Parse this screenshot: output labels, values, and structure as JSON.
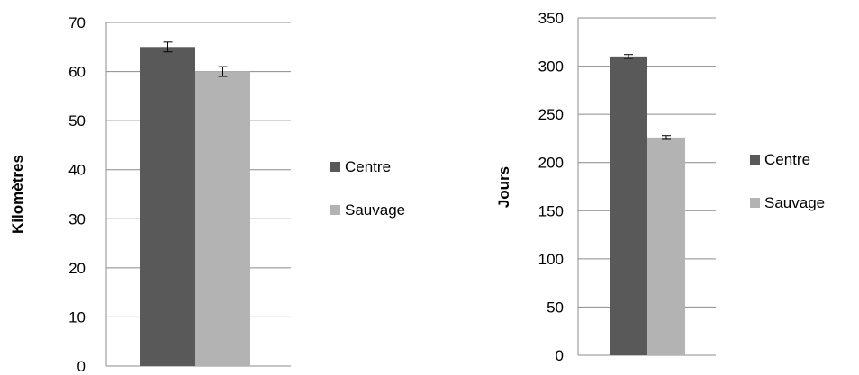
{
  "chart_data": [
    {
      "type": "bar",
      "categories": [
        ""
      ],
      "series": [
        {
          "name": "Centre",
          "values": [
            65
          ],
          "error": [
            1
          ]
        },
        {
          "name": "Sauvage",
          "values": [
            60
          ],
          "error": [
            1
          ]
        }
      ],
      "ylabel": "Kilomètres",
      "xlabel": "",
      "ylim": [
        0,
        70
      ],
      "yticks": [
        0,
        10,
        20,
        30,
        40,
        50,
        60,
        70
      ],
      "grid": true,
      "legend": "right",
      "colors": {
        "Centre": "#595959",
        "Sauvage": "#b3b3b3"
      }
    },
    {
      "type": "bar",
      "categories": [
        ""
      ],
      "series": [
        {
          "name": "Centre",
          "values": [
            310
          ],
          "error": [
            2
          ]
        },
        {
          "name": "Sauvage",
          "values": [
            226
          ],
          "error": [
            2
          ]
        }
      ],
      "ylabel": "Jours",
      "xlabel": "",
      "ylim": [
        0,
        350
      ],
      "yticks": [
        0,
        50,
        100,
        150,
        200,
        250,
        300,
        350
      ],
      "grid": true,
      "legend": "right",
      "colors": {
        "Centre": "#595959",
        "Sauvage": "#b3b3b3"
      }
    }
  ]
}
